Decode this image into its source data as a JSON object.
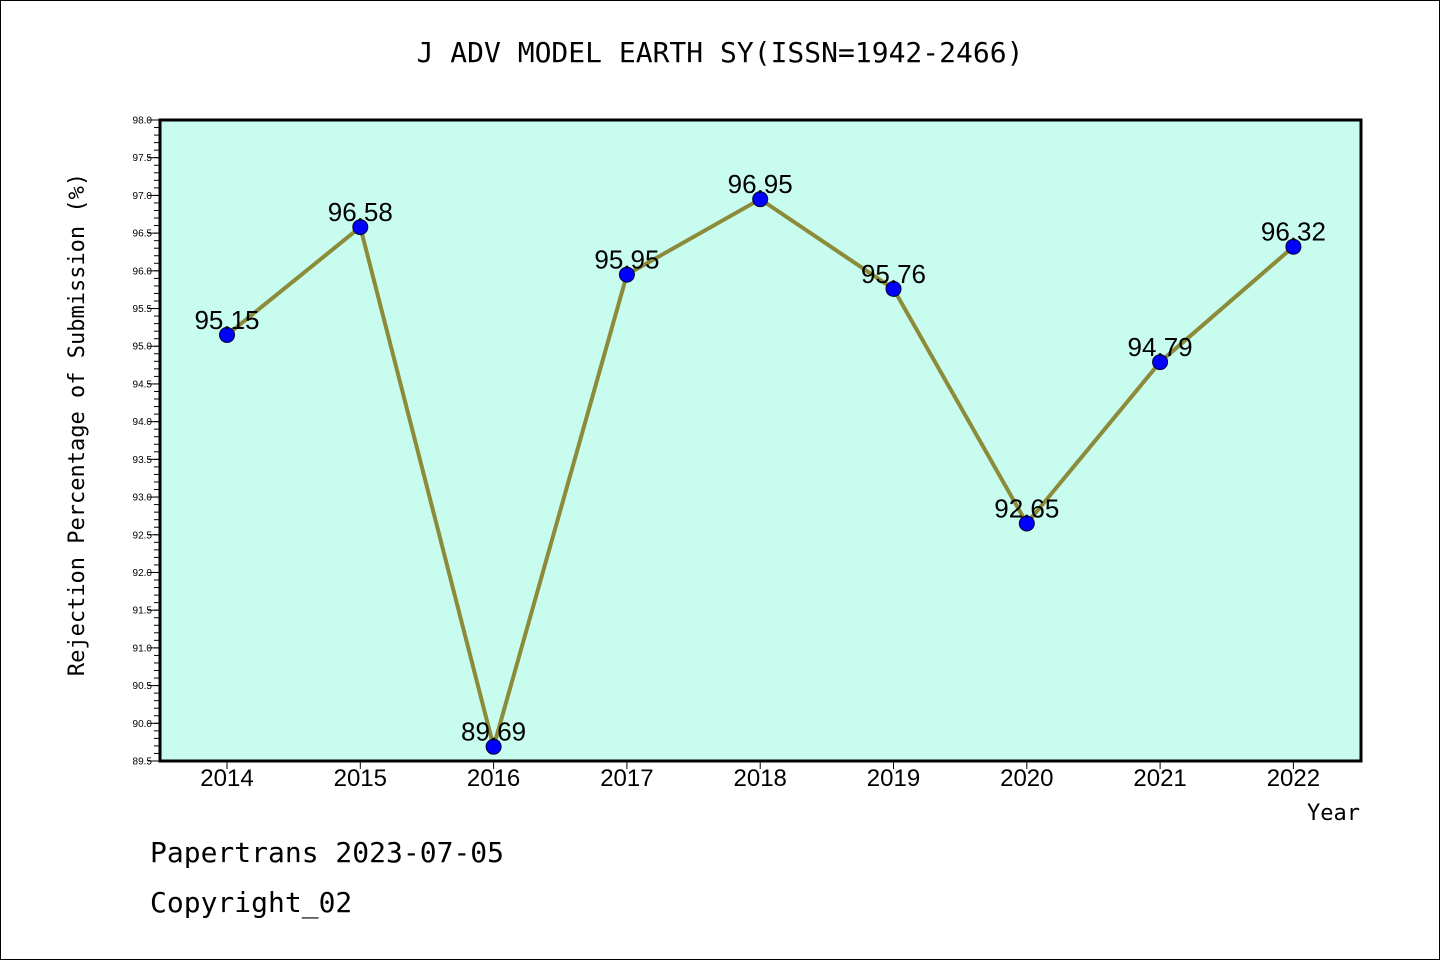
{
  "chart": {
    "title": "J ADV MODEL EARTH SY(ISSN=1942-2466)",
    "footer_line1": "Papertrans 2023-07-05",
    "footer_line2": "Copyright_02"
  },
  "chart_data": {
    "type": "line",
    "title": "J ADV MODEL EARTH SY(ISSN=1942-2466)",
    "xlabel": "Year",
    "ylabel": "Rejection Percentage of Submission (%)",
    "categories": [
      "2014",
      "2015",
      "2016",
      "2017",
      "2018",
      "2019",
      "2020",
      "2021",
      "2022"
    ],
    "values": [
      95.15,
      96.58,
      89.69,
      95.95,
      96.95,
      95.76,
      92.65,
      94.79,
      96.32
    ],
    "data_labels": [
      "95.15",
      "96.58",
      "89.69",
      "95.95",
      "96.95",
      "95.76",
      "92.65",
      "94.79",
      "96.32"
    ],
    "ylim": [
      89.5,
      98.0
    ],
    "yticks": [
      "89.5",
      "90.0",
      "90.5",
      "91.0",
      "91.5",
      "92.0",
      "92.5",
      "93.0",
      "93.5",
      "94.0",
      "94.5",
      "95.0",
      "95.5",
      "96.0",
      "96.5",
      "97.0",
      "97.5",
      "98.0"
    ],
    "grid": false,
    "colors": {
      "plot_background": "#c8fcee",
      "line": "#8b8b3a",
      "marker": "#0000ff"
    }
  }
}
